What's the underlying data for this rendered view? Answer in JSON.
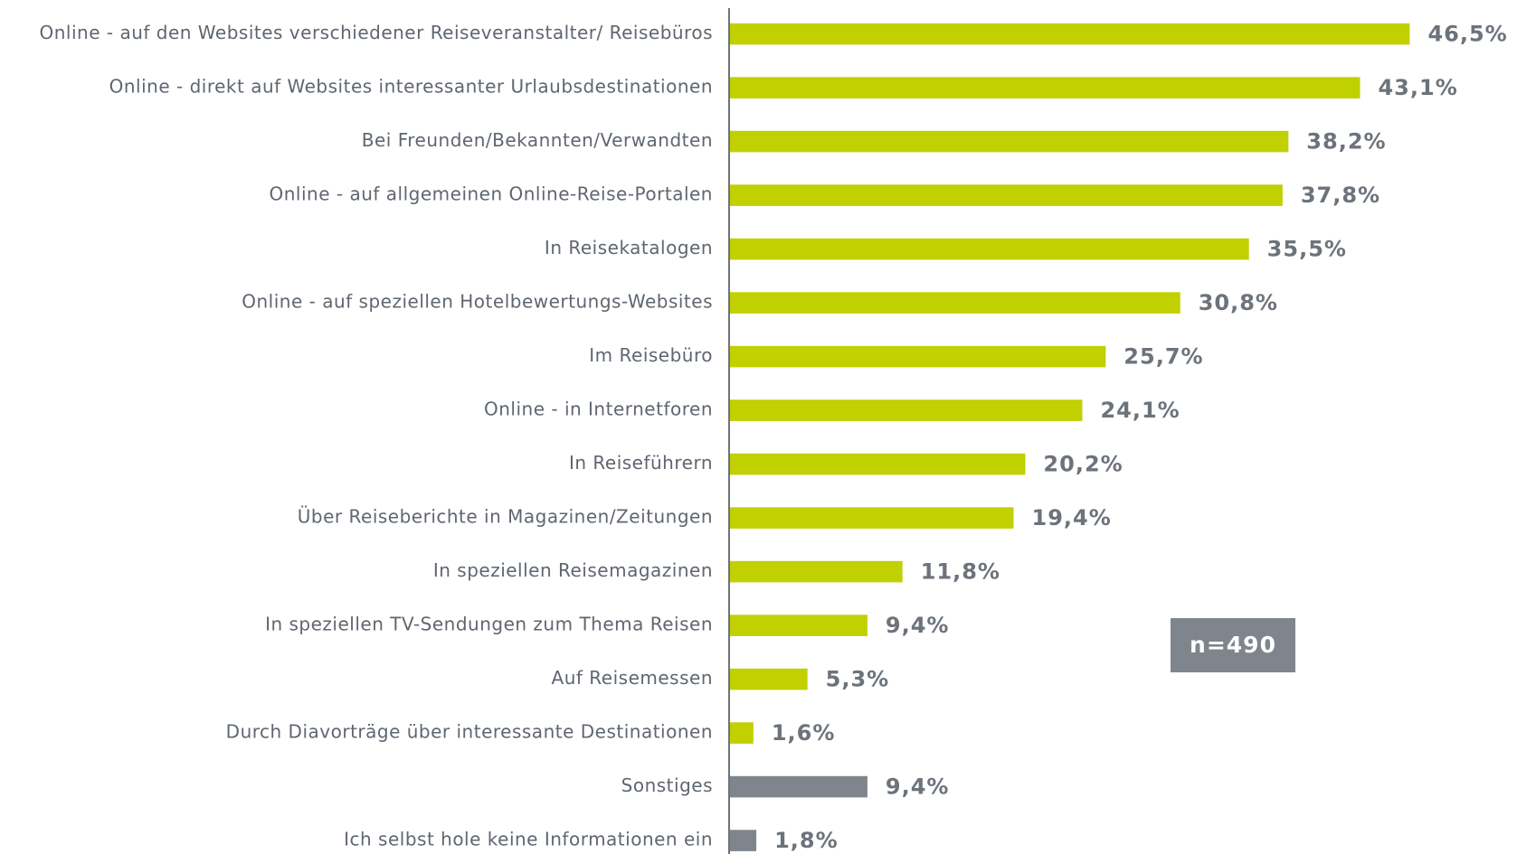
{
  "chart_data": {
    "type": "hbar",
    "categories": [
      "Online - auf den Websites verschiedener Reiseveranstalter/ Reisebüros",
      "Online - direkt auf Websites interessanter Urlaubsdestinationen",
      "Bei Freunden/Bekannten/Verwandten",
      "Online - auf allgemeinen Online-Reise-Portalen",
      "In Reisekatalogen",
      "Online - auf speziellen Hotelbewertungs-Websites",
      "Im Reisebüro",
      "Online - in Internetforen",
      "In Reiseführern",
      "Über Reiseberichte in Magazinen/Zeitungen",
      "In speziellen Reisemagazinen",
      "In speziellen TV-Sendungen zum Thema Reisen",
      "Auf Reisemessen",
      "Durch Diavorträge über interessante Destinationen",
      "Sonstiges",
      "Ich selbst hole keine Informationen ein"
    ],
    "values": [
      46.5,
      43.1,
      38.2,
      37.8,
      35.5,
      30.8,
      25.7,
      24.1,
      20.2,
      19.4,
      11.8,
      9.4,
      5.3,
      1.6,
      9.4,
      1.8
    ],
    "value_labels": [
      "46,5%",
      "43,1%",
      "38,2%",
      "37,8%",
      "35,5%",
      "30,8%",
      "25,7%",
      "24,1%",
      "20,2%",
      "19,4%",
      "11,8%",
      "9,4%",
      "5,3%",
      "1,6%",
      "9,4%",
      "1,8%"
    ],
    "colors": [
      "#c0d000",
      "#c0d000",
      "#c0d000",
      "#c0d000",
      "#c0d000",
      "#c0d000",
      "#c0d000",
      "#c0d000",
      "#c0d000",
      "#c0d000",
      "#c0d000",
      "#c0d000",
      "#c0d000",
      "#c0d000",
      "#7f858d",
      "#7f858d"
    ],
    "annotation": "n=490"
  }
}
